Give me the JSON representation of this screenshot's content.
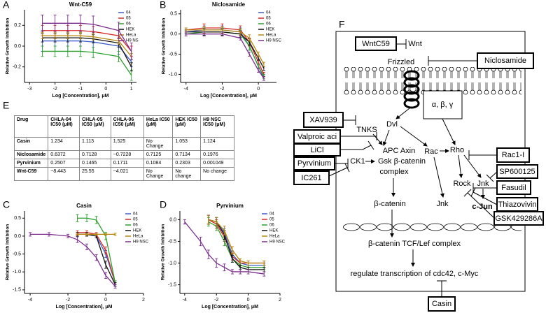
{
  "chart_data": [
    {
      "type": "line",
      "panel": "A",
      "title": "Wnt-C59",
      "x_label": "Log [Concentration], μM",
      "y_label": "Relative Growth Inhibition",
      "x": [
        -2.5,
        -2,
        -1.5,
        -1,
        -0.5,
        0.5,
        1
      ],
      "xlim": [
        -3.2,
        1.2
      ],
      "xticks": [
        -3,
        -2,
        -1,
        0,
        1
      ],
      "ylim": [
        -0.35,
        0.35
      ],
      "yticks": [
        -0.2,
        {
          "value": 0,
          "label": "0.0"
        },
        0.2
      ],
      "series": [
        {
          "name": "04",
          "color": "#3a5fcd",
          "values": [
            0.05,
            0.05,
            0.05,
            0.05,
            0.04,
            0.0,
            -0.15
          ],
          "errors": [
            0.1,
            0.1,
            0.1,
            0.1,
            0.1,
            0.08,
            0.05
          ]
        },
        {
          "name": "05",
          "color": "#d62728",
          "values": [
            0.15,
            0.15,
            0.15,
            0.15,
            0.14,
            0.1,
            -0.05
          ],
          "errors": [
            0.05,
            0.05,
            0.05,
            0.05,
            0.05,
            0.05,
            0.05
          ]
        },
        {
          "name": "06",
          "color": "#2ca02c",
          "values": [
            -0.05,
            -0.05,
            -0.05,
            -0.05,
            -0.06,
            -0.1,
            -0.28
          ],
          "errors": [
            0.05,
            0.05,
            0.05,
            0.05,
            0.05,
            0.05,
            0.05
          ]
        },
        {
          "name": "HEK",
          "color": "#111111",
          "values": [
            0.08,
            0.08,
            0.08,
            0.08,
            0.07,
            0.03,
            -0.2
          ],
          "errors": [
            0.04,
            0.04,
            0.04,
            0.04,
            0.04,
            0.04,
            0.04
          ]
        },
        {
          "name": "HeLa",
          "color": "#b8860b",
          "values": [
            0.1,
            0.1,
            0.1,
            0.1,
            0.09,
            0.05,
            -0.1
          ],
          "errors": [
            0.03,
            0.03,
            0.03,
            0.03,
            0.03,
            0.03,
            0.03
          ]
        },
        {
          "name": "H9 NS",
          "color": "#7b2d8e",
          "values": [
            0.22,
            0.22,
            0.22,
            0.22,
            0.21,
            0.15,
            -0.05
          ],
          "errors": [
            0.08,
            0.08,
            0.08,
            0.08,
            0.08,
            0.08,
            0.08
          ]
        }
      ]
    },
    {
      "type": "line",
      "panel": "B",
      "title": "Niclosamide",
      "x_label": "Log [Concentration], μM",
      "y_label": "Relative Growth Inhibition",
      "x": [
        -4,
        -3,
        -2,
        -1,
        -0.5,
        0,
        0.3
      ],
      "xlim": [
        -4.3,
        1
      ],
      "xticks": [
        -4,
        -2,
        0
      ],
      "ylim": [
        -1.2,
        0.6
      ],
      "yticks": [
        0.5,
        {
          "value": 0,
          "label": "0.0"
        },
        -0.5,
        {
          "value": -1,
          "label": "-1.0"
        }
      ],
      "series": [
        {
          "name": "04",
          "color": "#3a5fcd",
          "values": [
            0.05,
            0.1,
            0.1,
            0.05,
            -0.3,
            -0.8,
            -1.1
          ],
          "errors": [
            0.05,
            0.1,
            0.1,
            0.1,
            0.1,
            0.05,
            0.05
          ]
        },
        {
          "name": "05",
          "color": "#d62728",
          "values": [
            0.1,
            0.15,
            0.15,
            0.1,
            -0.2,
            -0.7,
            -1.0
          ],
          "errors": [
            0.05,
            0.1,
            0.1,
            0.1,
            0.1,
            0.05,
            0.05
          ]
        },
        {
          "name": "06",
          "color": "#2ca02c",
          "values": [
            0.0,
            0.05,
            0.05,
            0.0,
            -0.3,
            -0.8,
            -1.05
          ],
          "errors": [
            0.05,
            0.1,
            0.1,
            0.1,
            0.1,
            0.05,
            0.05
          ]
        },
        {
          "name": "HEK",
          "color": "#111111",
          "values": [
            0.05,
            0.05,
            0.05,
            0.0,
            -0.2,
            -0.6,
            -0.85
          ],
          "errors": [
            0.05,
            0.08,
            0.08,
            0.08,
            0.08,
            0.05,
            0.05
          ]
        },
        {
          "name": "HeLa",
          "color": "#b8860b",
          "values": [
            0.1,
            0.1,
            0.1,
            0.05,
            -0.1,
            -0.5,
            -0.75
          ],
          "errors": [
            0.05,
            0.08,
            0.08,
            0.08,
            0.08,
            0.05,
            0.05
          ]
        },
        {
          "name": "H9 NSC",
          "color": "#7b2d8e",
          "values": [
            0.0,
            0.0,
            0.0,
            -0.1,
            -0.5,
            -0.9,
            -1.1
          ],
          "errors": [
            0.05,
            0.05,
            0.05,
            0.05,
            0.05,
            0.05,
            0.05
          ]
        }
      ]
    },
    {
      "type": "line",
      "panel": "C",
      "title": "Casin",
      "x_label": "Log [Concentration], μM",
      "y_label": "Relative Growth Inhibition",
      "x": [
        -4,
        -3,
        -2,
        -1.5,
        -1,
        -0.5,
        0,
        0.5
      ],
      "xlim": [
        -4.3,
        2
      ],
      "xticks": [
        -4,
        -2,
        0,
        2
      ],
      "ylim": [
        -1.6,
        0.7
      ],
      "yticks": [
        0.5,
        {
          "value": 0,
          "label": "0.0"
        },
        -0.5,
        {
          "value": -1,
          "label": "-1.0"
        },
        -1.5
      ],
      "series": [
        {
          "name": "04",
          "color": "#3a5fcd",
          "values": [
            null,
            null,
            null,
            0.05,
            0.05,
            0.0,
            -0.5,
            -1.3
          ],
          "errors": [
            null,
            null,
            null,
            0.05,
            0.05,
            0.05,
            0.1,
            0.05
          ]
        },
        {
          "name": "05",
          "color": "#d62728",
          "values": [
            null,
            null,
            null,
            0.1,
            0.1,
            0.05,
            -0.4,
            -1.3
          ],
          "errors": [
            null,
            null,
            null,
            0.05,
            0.05,
            0.05,
            0.1,
            0.05
          ]
        },
        {
          "name": "06",
          "color": "#2ca02c",
          "values": [
            null,
            null,
            null,
            0.5,
            0.5,
            0.45,
            0.0,
            -1.3
          ],
          "errors": [
            null,
            null,
            null,
            0.1,
            0.1,
            0.1,
            0.1,
            0.05
          ]
        },
        {
          "name": "HEK",
          "color": "#111111",
          "values": [
            null,
            null,
            null,
            0.05,
            0.05,
            0.0,
            -0.8,
            -1.35
          ],
          "errors": [
            null,
            null,
            null,
            0.05,
            0.05,
            0.05,
            0.1,
            0.05
          ]
        },
        {
          "name": "HeLa",
          "color": "#b8860b",
          "values": [
            null,
            null,
            null,
            0.05,
            0.05,
            0.05,
            0.05,
            0.05
          ],
          "errors": [
            null,
            null,
            null,
            0.03,
            0.03,
            0.03,
            0.03,
            0.03
          ]
        },
        {
          "name": "H9 NSC",
          "color": "#7b2d8e",
          "values": [
            0.05,
            0.05,
            0.0,
            -0.1,
            -0.3,
            -0.6,
            -1.1,
            -1.4
          ],
          "errors": [
            0.05,
            0.05,
            0.05,
            0.08,
            0.08,
            0.08,
            0.08,
            0.05
          ]
        }
      ]
    },
    {
      "type": "line",
      "panel": "D",
      "title": "Pyrvinium",
      "x_label": "Log [Concentration], μM",
      "y_label": "Relative Growth Inhibition",
      "x": [
        -4,
        -3,
        -2.5,
        -2,
        -1.5,
        -1,
        -0.5,
        0,
        1
      ],
      "xlim": [
        -4.3,
        2
      ],
      "xticks": [
        -4,
        -2,
        0,
        2
      ],
      "ylim": [
        -1.7,
        0.2
      ],
      "yticks": [
        {
          "value": 0,
          "label": "0.0"
        },
        -0.5,
        {
          "value": -1,
          "label": "-1.0"
        },
        -1.5
      ],
      "series": [
        {
          "name": "04",
          "color": "#3a5fcd",
          "values": [
            null,
            null,
            0.0,
            -0.05,
            -0.3,
            -0.8,
            -1.0,
            -1.05,
            -1.05
          ],
          "errors": [
            null,
            null,
            0.1,
            0.1,
            0.1,
            0.08,
            0.05,
            0.05,
            0.05
          ]
        },
        {
          "name": "05",
          "color": "#d62728",
          "values": [
            null,
            null,
            0.0,
            -0.1,
            -0.4,
            -0.85,
            -1.0,
            -1.0,
            -1.0
          ],
          "errors": [
            null,
            null,
            0.1,
            0.1,
            0.1,
            0.08,
            0.05,
            0.05,
            0.05
          ]
        },
        {
          "name": "06",
          "color": "#2ca02c",
          "values": [
            null,
            null,
            -0.05,
            -0.15,
            -0.5,
            -0.9,
            -1.05,
            -1.1,
            -1.1
          ],
          "errors": [
            null,
            null,
            0.1,
            0.1,
            0.1,
            0.08,
            0.05,
            0.05,
            0.05
          ]
        },
        {
          "name": "HEK",
          "color": "#111111",
          "values": [
            null,
            null,
            0.0,
            -0.05,
            -0.35,
            -0.9,
            -1.1,
            -1.15,
            -1.15
          ],
          "errors": [
            null,
            null,
            0.1,
            0.1,
            0.1,
            0.08,
            0.05,
            0.05,
            0.05
          ]
        },
        {
          "name": "HeLa",
          "color": "#b8860b",
          "values": [
            null,
            null,
            0.0,
            -0.05,
            -0.25,
            -0.7,
            -0.95,
            -1.0,
            -1.0
          ],
          "errors": [
            null,
            null,
            0.1,
            0.1,
            0.1,
            0.08,
            0.05,
            0.05,
            0.05
          ]
        },
        {
          "name": "H9 NSC",
          "color": "#7b2d8e",
          "values": [
            -0.05,
            -0.5,
            -0.8,
            -1.0,
            -1.1,
            -1.2,
            -1.2,
            -1.2,
            -1.25
          ],
          "errors": [
            0.05,
            0.1,
            0.1,
            0.1,
            0.08,
            0.05,
            0.05,
            0.05,
            0.05
          ]
        }
      ]
    }
  ],
  "table": {
    "panel": "E",
    "header": [
      "Drug",
      "CHLA-04 IC50 (μM)",
      "CHLA-05 IC50 (μM)",
      "CHLA-06 IC50 (μM)",
      "HeLa IC50 (μM)",
      "HEK IC50 (μM)",
      "H9 NSC IC50 (μM)"
    ],
    "rows": [
      [
        "Casin",
        "1.234",
        "1.113",
        "1.525",
        "No Change",
        "1.053",
        "1.124"
      ],
      [
        "Niclosamide",
        "0.6372",
        "0.7128",
        "~0.7228",
        "0.7125",
        "0.7134",
        "0.1976"
      ],
      [
        "Pyrvinium",
        "0.2507",
        "0.1465",
        "0.1711",
        "0.1084",
        "0.2303",
        "0.001049"
      ],
      [
        "Wnt-C59",
        "~8.443",
        "25.55",
        "~4.021",
        "No Change",
        "No change",
        "No change"
      ]
    ]
  },
  "diagram": {
    "panel": "F",
    "drugs": [
      "WntC59",
      "Niclosamide",
      "XAV939",
      "Valproic aci",
      "LiCl",
      "Pyrvinium",
      "IC261",
      "Rac1-I",
      "SP600125",
      "Fasudil",
      "Thiazovivin",
      "GSK429286A",
      "Casin"
    ],
    "nodes": [
      "Wnt",
      "Frizzled",
      "α, β, γ",
      "Dvl",
      "TNKS",
      "APC Axin",
      "Gsk β-catenin",
      "complex",
      "CK1",
      "Rac",
      "Rho",
      "Rock",
      "Jnk",
      "Jnk",
      "c-Jun",
      "β-catenin",
      "β-catenin TCF/Lef complex",
      "regulate transcription of cdc42, c-Myc"
    ]
  }
}
